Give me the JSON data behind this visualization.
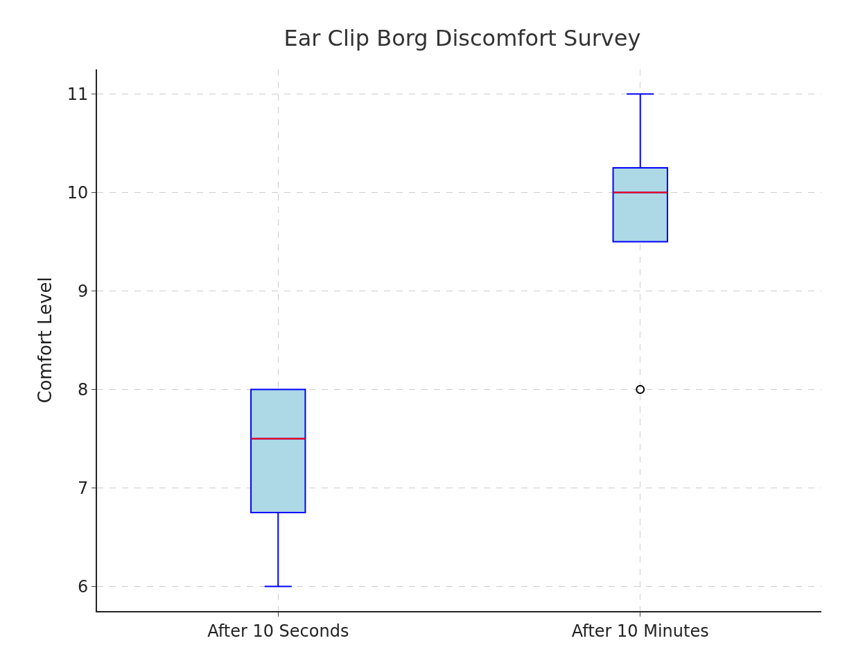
{
  "chart_data": {
    "type": "box",
    "title": "Ear Clip Borg Discomfort Survey",
    "ylabel": "Comfort Level",
    "categories": [
      "After 10 Seconds",
      "After 10 Minutes"
    ],
    "boxes": [
      {
        "low": 6,
        "q1": 6.75,
        "median": 7.5,
        "q3": 8,
        "high": 8
      },
      {
        "low": 9.5,
        "q1": 9.5,
        "median": 10,
        "q3": 10.25,
        "high": 11,
        "outliers": [
          8
        ]
      }
    ],
    "ylim": [
      5.75,
      11.25
    ],
    "yticks": [
      6,
      7,
      8,
      9,
      10,
      11
    ],
    "grid": true
  }
}
